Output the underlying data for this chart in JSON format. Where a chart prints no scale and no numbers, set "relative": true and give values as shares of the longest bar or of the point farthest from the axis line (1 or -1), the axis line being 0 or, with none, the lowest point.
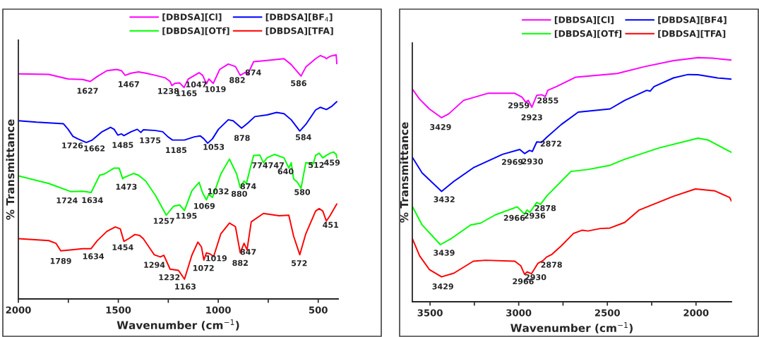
{
  "chart_data": [
    {
      "type": "line",
      "relative": true,
      "xlabel": "Wavenumber (cm$^{−1}$)",
      "ylabel": "% Transmittance",
      "xlim": [
        2000,
        400
      ],
      "xticks": [
        2000,
        {
          "value": 1750,
          "label": null
        },
        1500,
        {
          "value": 1250,
          "label": null
        },
        1000,
        {
          "value": 750,
          "label": null
        },
        500
      ],
      "legend": "top right",
      "tick_labels": "x",
      "series": [
        {
          "name": "[DBDSA][Cl]",
          "color": "#ff00ff",
          "x": [
            2000,
            1848,
            1751,
            1678,
            1640,
            1606,
            1557,
            1508,
            1484,
            1466,
            1436,
            1399,
            1363,
            1314,
            1266,
            1241,
            1232,
            1217,
            1193,
            1171,
            1150,
            1096,
            1078,
            1059,
            1047,
            1025,
            993,
            950,
            914,
            890,
            871,
            859,
            853,
            823,
            756,
            671,
            635,
            586,
            562,
            513,
            489,
            465,
            459,
            441,
            410,
            407
          ],
          "values": [
            0.922,
            0.92,
            0.901,
            0.899,
            0.891,
            0.911,
            0.935,
            0.94,
            0.935,
            0.916,
            0.925,
            0.93,
            0.925,
            0.916,
            0.906,
            0.891,
            0.874,
            0.883,
            0.885,
            0.866,
            0.901,
            0.927,
            0.916,
            0.881,
            0.901,
            0.883,
            0.94,
            0.962,
            0.952,
            0.916,
            0.925,
            0.93,
            0.92,
            0.972,
            0.977,
            0.984,
            0.96,
            0.913,
            0.95,
            0.984,
            0.997,
            0.989,
            0.984,
            0.994,
            1,
            0.964
          ]
        },
        {
          "name": "[DBDSA][BF$_{4}$]",
          "color": "#0000ff",
          "x": [
            2000,
            1909,
            1775,
            1751,
            1727,
            1703,
            1660,
            1630,
            1581,
            1539,
            1521,
            1502,
            1484,
            1472,
            1436,
            1405,
            1387,
            1375,
            1314,
            1278,
            1254,
            1229,
            1169,
            1120,
            1090,
            1072,
            1053,
            1029,
            999,
            950,
            926,
            883,
            853,
            817,
            756,
            708,
            671,
            635,
            592,
            562,
            513,
            489,
            459,
            434,
            407
          ],
          "values": [
            0.73,
            0.724,
            0.718,
            0.695,
            0.666,
            0.656,
            0.641,
            0.651,
            0.685,
            0.703,
            0.695,
            0.671,
            0.676,
            0.669,
            0.685,
            0.695,
            0.682,
            0.693,
            0.69,
            0.685,
            0.666,
            0.651,
            0.651,
            0.664,
            0.668,
            0.656,
            0.638,
            0.656,
            0.695,
            0.734,
            0.73,
            0.7,
            0.72,
            0.747,
            0.754,
            0.764,
            0.759,
            0.734,
            0.688,
            0.715,
            0.774,
            0.785,
            0.776,
            0.788,
            0.808
          ]
        },
        {
          "name": "[DBDSA][OTf]",
          "color": "#00ff00",
          "x": [
            2000,
            1848,
            1739,
            1678,
            1636,
            1593,
            1569,
            1521,
            1496,
            1478,
            1472,
            1424,
            1399,
            1363,
            1314,
            1260,
            1223,
            1193,
            1169,
            1132,
            1096,
            1078,
            1059,
            1047,
            1029,
            987,
            944,
            908,
            890,
            871,
            859,
            841,
            823,
            792,
            774,
            756,
            720,
            671,
            647,
            635,
            623,
            604,
            586,
            562,
            525,
            513,
            495,
            477,
            459,
            441,
            423,
            410,
            407
          ],
          "values": [
            0.504,
            0.473,
            0.44,
            0.441,
            0.436,
            0.507,
            0.512,
            0.536,
            0.536,
            0.492,
            0.497,
            0.514,
            0.507,
            0.483,
            0.424,
            0.343,
            0.38,
            0.385,
            0.362,
            0.443,
            0.478,
            0.434,
            0.406,
            0.429,
            0.416,
            0.512,
            0.573,
            0.512,
            0.456,
            0.483,
            0.473,
            0.532,
            0.588,
            0.589,
            0.558,
            0.578,
            0.592,
            0.578,
            0.536,
            0.558,
            0.492,
            0.478,
            0.453,
            0.558,
            0.553,
            0.588,
            0.597,
            0.578,
            0.588,
            0.597,
            0.602,
            0.592,
            0.578
          ]
        },
        {
          "name": "[DBDSA][TFA]",
          "color": "#ff0000",
          "x": [
            2000,
            1848,
            1812,
            1788,
            1739,
            1678,
            1636,
            1606,
            1557,
            1515,
            1490,
            1472,
            1448,
            1417,
            1393,
            1375,
            1351,
            1320,
            1290,
            1272,
            1241,
            1199,
            1169,
            1132,
            1102,
            1084,
            1072,
            1059,
            1041,
            1023,
            987,
            944,
            914,
            890,
            871,
            856,
            835,
            774,
            732,
            695,
            647,
            623,
            592,
            562,
            513,
            495,
            477,
            459,
            441,
            407
          ],
          "values": [
            0.247,
            0.239,
            0.228,
            0.197,
            0.201,
            0.206,
            0.206,
            0.238,
            0.277,
            0.295,
            0.287,
            0.236,
            0.247,
            0.264,
            0.26,
            0.247,
            0.218,
            0.181,
            0.172,
            0.179,
            0.122,
            0.117,
            0.081,
            0.179,
            0.233,
            0.213,
            0.159,
            0.189,
            0.184,
            0.174,
            0.267,
            0.311,
            0.296,
            0.189,
            0.228,
            0.201,
            0.316,
            0.35,
            0.345,
            0.341,
            0.343,
            0.257,
            0.181,
            0.267,
            0.36,
            0.37,
            0.36,
            0.319,
            0.341,
            0.389
          ]
        }
      ],
      "annotations": [
        {
          "text": "1627",
          "x": 1654,
          "y": 0.894
        },
        {
          "text": "1467",
          "x": 1448,
          "y": 0.921
        },
        {
          "text": "1238",
          "x": 1250,
          "y": 0.893
        },
        {
          "text": "1165",
          "x": 1160,
          "y": 0.884
        },
        {
          "text": "1047",
          "x": 1110,
          "y": 0.92
        },
        {
          "text": "1019",
          "x": 1015,
          "y": 0.901
        },
        {
          "text": "882",
          "x": 905,
          "y": 0.938
        },
        {
          "text": "874",
          "x": 825,
          "y": 0.969
        },
        {
          "text": "586",
          "x": 598,
          "y": 0.925
        },
        {
          "text": "1726",
          "x": 1730,
          "y": 0.67
        },
        {
          "text": "1662",
          "x": 1620,
          "y": 0.658
        },
        {
          "text": "1485",
          "x": 1478,
          "y": 0.672
        },
        {
          "text": "1375",
          "x": 1341,
          "y": 0.691
        },
        {
          "text": "1185",
          "x": 1211,
          "y": 0.651
        },
        {
          "text": "1053",
          "x": 1023,
          "y": 0.664
        },
        {
          "text": "878",
          "x": 881,
          "y": 0.701
        },
        {
          "text": "584",
          "x": 574,
          "y": 0.704
        },
        {
          "text": "774",
          "x": 792,
          "y": 0.589
        },
        {
          "text": "747",
          "x": 710,
          "y": 0.589
        },
        {
          "text": "640",
          "x": 663,
          "y": 0.564
        },
        {
          "text": "512",
          "x": 510,
          "y": 0.59
        },
        {
          "text": "459",
          "x": 431,
          "y": 0.6
        },
        {
          "text": "1724",
          "x": 1757,
          "y": 0.445
        },
        {
          "text": "1634",
          "x": 1630,
          "y": 0.446
        },
        {
          "text": "1473",
          "x": 1460,
          "y": 0.501
        },
        {
          "text": "1257",
          "x": 1272,
          "y": 0.361
        },
        {
          "text": "1195",
          "x": 1160,
          "y": 0.382
        },
        {
          "text": "1069",
          "x": 1070,
          "y": 0.422
        },
        {
          "text": "1032",
          "x": 1000,
          "y": 0.482
        },
        {
          "text": "880",
          "x": 895,
          "y": 0.472
        },
        {
          "text": "874",
          "x": 850,
          "y": 0.503
        },
        {
          "text": "580",
          "x": 580,
          "y": 0.479
        },
        {
          "text": "1789",
          "x": 1788,
          "y": 0.197
        },
        {
          "text": "1634",
          "x": 1625,
          "y": 0.216
        },
        {
          "text": "1454",
          "x": 1478,
          "y": 0.253
        },
        {
          "text": "1294",
          "x": 1320,
          "y": 0.181
        },
        {
          "text": "1232",
          "x": 1245,
          "y": 0.13
        },
        {
          "text": "1163",
          "x": 1165,
          "y": 0.092
        },
        {
          "text": "1072",
          "x": 1074,
          "y": 0.168
        },
        {
          "text": "1019",
          "x": 1010,
          "y": 0.208
        },
        {
          "text": "882",
          "x": 890,
          "y": 0.189
        },
        {
          "text": "847",
          "x": 850,
          "y": 0.234
        },
        {
          "text": "572",
          "x": 595,
          "y": 0.188
        },
        {
          "text": "451",
          "x": 438,
          "y": 0.345
        }
      ]
    },
    {
      "type": "line",
      "relative": true,
      "xlabel": "Wavenumber (cm$^{−1}$)",
      "ylabel": "% Transmittance",
      "xlim": [
        3600,
        1800
      ],
      "xticks": [
        3500,
        {
          "value": 3250,
          "label": null
        },
        3000,
        {
          "value": 2750,
          "label": null
        },
        2500,
        {
          "value": 2250,
          "label": null
        },
        2000
      ],
      "legend": "top right",
      "tick_labels": "x",
      "series": [
        {
          "name": "[DBDSA][Cl]",
          "color": "#ff00ff",
          "x": [
            3600,
            3559,
            3504,
            3435,
            3394,
            3311,
            3174,
            3022,
            2981,
            2960,
            2946,
            2926,
            2898,
            2871,
            2850,
            2836,
            2788,
            2678,
            2444,
            2292,
            2127,
            1989,
            1906,
            1800
          ],
          "values": [
            0.871,
            0.83,
            0.79,
            0.754,
            0.77,
            0.825,
            0.854,
            0.854,
            0.838,
            0.817,
            0.825,
            0.797,
            0.846,
            0.848,
            0.841,
            0.866,
            0.881,
            0.92,
            0.935,
            0.963,
            0.988,
            1,
            0.998,
            0.99
          ]
        },
        {
          "name": "[DBDSA][BF4]",
          "color": "#0000ff",
          "x": [
            3600,
            3545,
            3435,
            3366,
            3256,
            3091,
            2994,
            2967,
            2939,
            2923,
            2898,
            2871,
            2843,
            2760,
            2664,
            2485,
            2402,
            2278,
            2258,
            2237,
            2127,
            2044,
            1989,
            1879,
            1800
          ],
          "values": [
            0.592,
            0.528,
            0.452,
            0.493,
            0.549,
            0.604,
            0.624,
            0.607,
            0.62,
            0.616,
            0.655,
            0.653,
            0.673,
            0.726,
            0.777,
            0.79,
            0.825,
            0.866,
            0.863,
            0.881,
            0.917,
            0.931,
            0.93,
            0.917,
            0.912
          ]
        },
        {
          "name": "[DBDSA][OTf]",
          "color": "#00ff00",
          "x": [
            3600,
            3545,
            3442,
            3380,
            3270,
            3215,
            3132,
            3008,
            2967,
            2953,
            2937,
            2898,
            2877,
            2843,
            2705,
            2609,
            2485,
            2402,
            2347,
            2209,
            1989,
            1934,
            1800
          ],
          "values": [
            0.391,
            0.315,
            0.234,
            0.259,
            0.315,
            0.322,
            0.356,
            0.389,
            0.359,
            0.376,
            0.366,
            0.407,
            0.399,
            0.432,
            0.534,
            0.542,
            0.559,
            0.584,
            0.597,
            0.63,
            0.67,
            0.663,
            0.612
          ]
        },
        {
          "name": "[DBDSA][TFA]",
          "color": "#ff0000",
          "x": [
            3600,
            3559,
            3504,
            3435,
            3366,
            3256,
            3187,
            3022,
            2988,
            2967,
            2953,
            2928,
            2891,
            2864,
            2843,
            2815,
            2760,
            2691,
            2643,
            2609,
            2540,
            2485,
            2402,
            2320,
            2196,
            2127,
            2003,
            1893,
            1810,
            1800
          ],
          "values": [
            0.259,
            0.188,
            0.132,
            0.102,
            0.117,
            0.166,
            0.17,
            0.166,
            0.147,
            0.112,
            0.122,
            0.115,
            0.158,
            0.168,
            0.183,
            0.193,
            0.229,
            0.28,
            0.293,
            0.29,
            0.3,
            0.302,
            0.325,
            0.376,
            0.412,
            0.432,
            0.462,
            0.454,
            0.427,
            0.412
          ]
        }
      ],
      "annotations": [
        {
          "text": "3429",
          "x": 3441,
          "y": 0.757
        },
        {
          "text": "2959",
          "x": 3000,
          "y": 0.846
        },
        {
          "text": "2923",
          "x": 2926,
          "y": 0.797
        },
        {
          "text": "2855",
          "x": 2836,
          "y": 0.866
        },
        {
          "text": "2969",
          "x": 3036,
          "y": 0.614
        },
        {
          "text": "2930",
          "x": 2923,
          "y": 0.616
        },
        {
          "text": "2872",
          "x": 2818,
          "y": 0.689
        },
        {
          "text": "3432",
          "x": 3420,
          "y": 0.461
        },
        {
          "text": "2878",
          "x": 2850,
          "y": 0.425
        },
        {
          "text": "2966",
          "x": 3025,
          "y": 0.385
        },
        {
          "text": "2936",
          "x": 2910,
          "y": 0.394
        },
        {
          "text": "3439",
          "x": 3421,
          "y": 0.242
        },
        {
          "text": "2878",
          "x": 2815,
          "y": 0.193
        },
        {
          "text": "2966",
          "x": 2975,
          "y": 0.125
        },
        {
          "text": "2930",
          "x": 2905,
          "y": 0.142
        },
        {
          "text": "3429",
          "x": 3428,
          "y": 0.104
        }
      ]
    }
  ]
}
